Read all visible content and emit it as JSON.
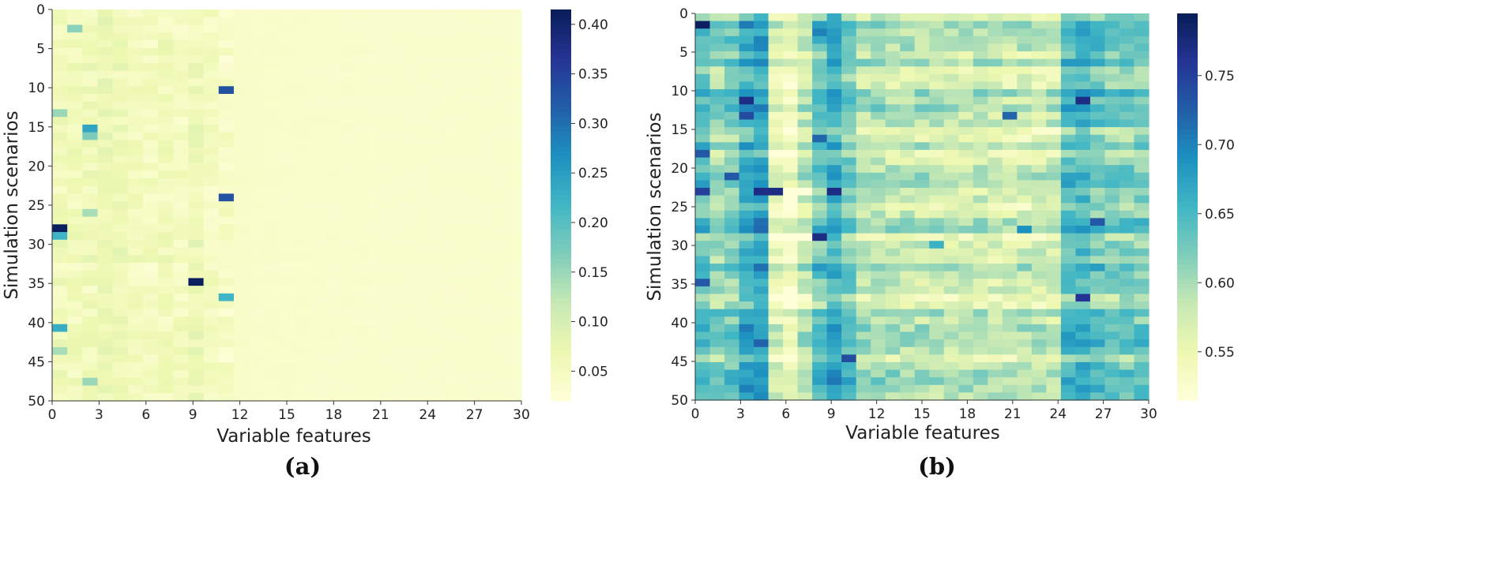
{
  "figure": {
    "panels": [
      "(a)",
      "(b)"
    ]
  },
  "chart_data": [
    {
      "type": "heatmap",
      "panel_label": "(a)",
      "xlabel": "Variable features",
      "ylabel": "Simulation scenarios",
      "rows": 51,
      "cols": 31,
      "xticks": [
        "0",
        "3",
        "6",
        "9",
        "12",
        "15",
        "18",
        "21",
        "24",
        "27",
        "30"
      ],
      "yticks": [
        "0",
        "5",
        "10",
        "15",
        "20",
        "25",
        "30",
        "35",
        "40",
        "45",
        "50"
      ],
      "colorbar": {
        "min": 0.02,
        "max": 0.415,
        "ticks": [
          "0.05",
          "0.10",
          "0.15",
          "0.20",
          "0.25",
          "0.30",
          "0.35",
          "0.40"
        ]
      },
      "colormap": [
        "#ffffd9",
        "#edf8b1",
        "#c7e9b4",
        "#7fcdbb",
        "#41b6c4",
        "#1d91c0",
        "#225ea8",
        "#253494",
        "#081d58"
      ],
      "background_value": 0.035,
      "column_profile": [
        0.06,
        0.055,
        0.06,
        0.07,
        0.065,
        0.055,
        0.05,
        0.055,
        0.05,
        0.065,
        0.05,
        0.045,
        0.04,
        0.038,
        0.038,
        0.037,
        0.037,
        0.036,
        0.036,
        0.036,
        0.036,
        0.035,
        0.035,
        0.035,
        0.035,
        0.035,
        0.035,
        0.035,
        0.035,
        0.035,
        0.035
      ],
      "highlights": [
        {
          "row": 2,
          "col": 1,
          "value": 0.16
        },
        {
          "row": 10,
          "col": 11,
          "value": 0.33
        },
        {
          "row": 13,
          "col": 0,
          "value": 0.15
        },
        {
          "row": 15,
          "col": 2,
          "value": 0.24
        },
        {
          "row": 16,
          "col": 2,
          "value": 0.17
        },
        {
          "row": 24,
          "col": 11,
          "value": 0.33
        },
        {
          "row": 26,
          "col": 2,
          "value": 0.14
        },
        {
          "row": 28,
          "col": 0,
          "value": 0.41
        },
        {
          "row": 29,
          "col": 0,
          "value": 0.22
        },
        {
          "row": 35,
          "col": 9,
          "value": 0.41
        },
        {
          "row": 37,
          "col": 11,
          "value": 0.22
        },
        {
          "row": 41,
          "col": 0,
          "value": 0.23
        },
        {
          "row": 44,
          "col": 0,
          "value": 0.14
        },
        {
          "row": 48,
          "col": 2,
          "value": 0.15
        }
      ]
    },
    {
      "type": "heatmap",
      "panel_label": "(b)",
      "xlabel": "Variable features",
      "ylabel": "Simulation scenarios",
      "rows": 51,
      "cols": 31,
      "xticks": [
        "0",
        "3",
        "6",
        "9",
        "12",
        "15",
        "18",
        "21",
        "24",
        "27",
        "30"
      ],
      "yticks": [
        "0",
        "5",
        "10",
        "15",
        "20",
        "25",
        "30",
        "35",
        "40",
        "45",
        "50"
      ],
      "colorbar": {
        "min": 0.515,
        "max": 0.795,
        "ticks": [
          "0.55",
          "0.60",
          "0.65",
          "0.70",
          "0.75"
        ]
      },
      "colormap": [
        "#ffffd9",
        "#edf8b1",
        "#c7e9b4",
        "#7fcdbb",
        "#41b6c4",
        "#1d91c0",
        "#225ea8",
        "#253494",
        "#081d58"
      ],
      "column_profile": [
        0.64,
        0.61,
        0.62,
        0.66,
        0.67,
        0.56,
        0.54,
        0.58,
        0.63,
        0.66,
        0.63,
        0.59,
        0.59,
        0.585,
        0.585,
        0.585,
        0.58,
        0.58,
        0.58,
        0.58,
        0.575,
        0.575,
        0.575,
        0.575,
        0.575,
        0.64,
        0.65,
        0.63,
        0.62,
        0.62,
        0.62
      ],
      "highlights": [
        {
          "row": 1,
          "col": 0,
          "value": 0.79
        },
        {
          "row": 2,
          "col": 8,
          "value": 0.7
        },
        {
          "row": 11,
          "col": 3,
          "value": 0.77
        },
        {
          "row": 11,
          "col": 26,
          "value": 0.77
        },
        {
          "row": 13,
          "col": 3,
          "value": 0.74
        },
        {
          "row": 13,
          "col": 21,
          "value": 0.72
        },
        {
          "row": 16,
          "col": 8,
          "value": 0.72
        },
        {
          "row": 18,
          "col": 0,
          "value": 0.73
        },
        {
          "row": 21,
          "col": 2,
          "value": 0.73
        },
        {
          "row": 23,
          "col": 4,
          "value": 0.77
        },
        {
          "row": 23,
          "col": 5,
          "value": 0.77
        },
        {
          "row": 23,
          "col": 9,
          "value": 0.77
        },
        {
          "row": 23,
          "col": 0,
          "value": 0.75
        },
        {
          "row": 28,
          "col": 22,
          "value": 0.69
        },
        {
          "row": 29,
          "col": 8,
          "value": 0.77
        },
        {
          "row": 30,
          "col": 16,
          "value": 0.66
        },
        {
          "row": 35,
          "col": 0,
          "value": 0.73
        },
        {
          "row": 37,
          "col": 26,
          "value": 0.76
        },
        {
          "row": 45,
          "col": 10,
          "value": 0.74
        },
        {
          "row": 27,
          "col": 27,
          "value": 0.73
        }
      ],
      "light_rows": [
        23,
        29
      ]
    }
  ]
}
